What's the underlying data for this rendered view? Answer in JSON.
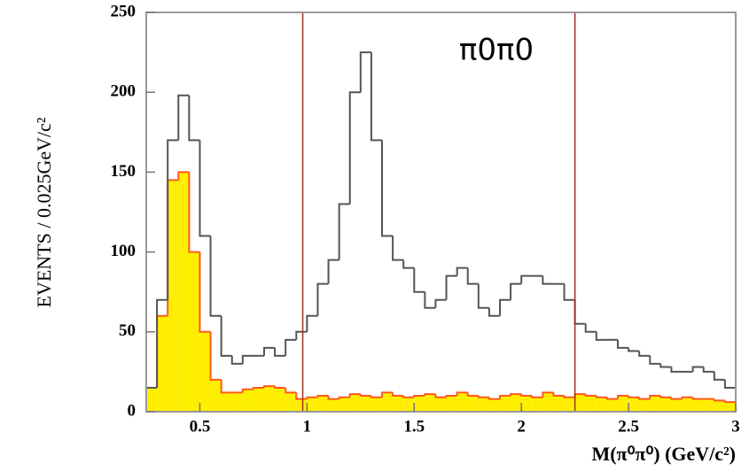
{
  "chart_data": {
    "type": "histogram",
    "annotation": "π0π0",
    "x_label": "M(π⁰π⁰) (GeV/c²)",
    "y_label": "EVENTS / 0.025GeV/c²",
    "bins": [
      0.25,
      0.3,
      0.35,
      0.4,
      0.45,
      0.5,
      0.55,
      0.6,
      0.65,
      0.7,
      0.75,
      0.8,
      0.85,
      0.9,
      0.95,
      1.0,
      1.05,
      1.1,
      1.15,
      1.2,
      1.25,
      1.3,
      1.35,
      1.4,
      1.45,
      1.5,
      1.55,
      1.6,
      1.65,
      1.7,
      1.75,
      1.8,
      1.85,
      1.9,
      1.95,
      2.0,
      2.05,
      2.1,
      2.15,
      2.2,
      2.25,
      2.3,
      2.35,
      2.4,
      2.45,
      2.5,
      2.55,
      2.6,
      2.65,
      2.7,
      2.75,
      2.8,
      2.85,
      2.9,
      2.95,
      3.0
    ],
    "series": [
      {
        "color": "#555555",
        "fill": "none",
        "values": [
          15,
          70,
          170,
          198,
          170,
          110,
          60,
          35,
          30,
          35,
          35,
          40,
          35,
          45,
          50,
          60,
          80,
          95,
          130,
          200,
          225,
          170,
          110,
          95,
          90,
          75,
          65,
          70,
          85,
          90,
          80,
          65,
          60,
          70,
          80,
          85,
          85,
          80,
          80,
          70,
          55,
          50,
          45,
          45,
          40,
          38,
          35,
          30,
          28,
          25,
          25,
          28,
          25,
          20,
          15
        ]
      },
      {
        "color": "#ff5a1e",
        "fill": "#ffee00",
        "values": [
          15,
          60,
          145,
          150,
          100,
          50,
          20,
          12,
          12,
          14,
          15,
          16,
          15,
          12,
          8,
          9,
          10,
          8,
          9,
          11,
          10,
          9,
          12,
          10,
          9,
          10,
          11,
          9,
          10,
          12,
          10,
          9,
          8,
          10,
          11,
          10,
          9,
          12,
          10,
          9,
          11,
          10,
          9,
          8,
          10,
          9,
          8,
          10,
          9,
          8,
          9,
          8,
          8,
          7,
          6
        ]
      }
    ],
    "vlines": [
      0.98,
      2.25
    ],
    "vline_color": "#a0301e",
    "xlim": [
      0.25,
      3.0
    ],
    "xticks": [
      0.5,
      1,
      1.5,
      2,
      2.5,
      3
    ],
    "ylim": [
      0,
      250
    ],
    "yticks": [
      0,
      50,
      100,
      150,
      200,
      250
    ]
  }
}
